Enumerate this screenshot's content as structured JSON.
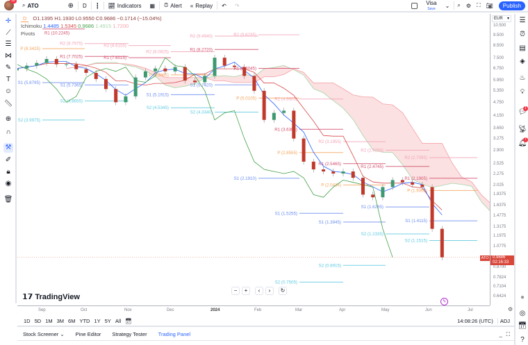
{
  "topbar": {
    "notifications": "18",
    "symbol": "ATO",
    "interval": "D",
    "indicators_label": "Indicators",
    "alert_label": "Alert",
    "replay_label": "Replay",
    "layout_name": "Visa",
    "layout_status": "Save",
    "publish_label": "Publish"
  },
  "legend": {
    "interval_badge": "D",
    "ohlc": "O1.1395 H1.1930 L0.9550 C0.9686 −0.1714 (−15.04%)",
    "ichimoku_label": "Ichimoku",
    "ichimoku_values": [
      {
        "v": "1.4485",
        "color": "#2962ff"
      },
      {
        "v": "1.5345",
        "color": "#d84a4a"
      },
      {
        "v": "0.9686",
        "color": "#43a047"
      },
      {
        "v": "1.4915",
        "color": "#a5d6a7"
      },
      {
        "v": "1.7200",
        "color": "#f5a0a8"
      }
    ],
    "pivots_label": "Pivots"
  },
  "price_axis": {
    "currency": "EUR",
    "ticks": [
      "10.500",
      "9.500",
      "8.500",
      "7.500",
      "6.750",
      "5.950",
      "5.350",
      "4.750",
      "4.150",
      "3.650",
      "3.275",
      "2.900",
      "2.525",
      "2.275",
      "2.025",
      "1.8375",
      "1.6375",
      "1.4775",
      "1.3175",
      "1.1975",
      "1.0775",
      "0.8700",
      "0.7824",
      "0.7104",
      "0.6424"
    ],
    "last_price": "0.9686",
    "countdown": "02:16:33",
    "symbol_tag": "ATO"
  },
  "time_axis": [
    "Sep",
    "Oct",
    "Nov",
    "Dec",
    "2024",
    "Feb",
    "Mar",
    "Apr",
    "May",
    "Jun",
    "Jul"
  ],
  "range_bar": {
    "ranges": [
      "1D",
      "5D",
      "1M",
      "3M",
      "6M",
      "YTD",
      "1Y",
      "5Y",
      "All"
    ],
    "clock": "14:08:26 (UTC)",
    "adj": "ADJ"
  },
  "bottom_tabs": [
    "Stock Screener",
    "Pine Editor",
    "Strategy Tester",
    "Trading Panel"
  ],
  "brand": "TradingView",
  "right_toolbar": {
    "chat_badge": "1",
    "alerts_badge": "7"
  },
  "colors": {
    "up": "#3d9970",
    "down": "#c0392b",
    "accent": "#2962ff",
    "R2": "#f3a2b6",
    "R1": "#d24d6c",
    "P": "#f5a35a",
    "S1": "#6a8df0",
    "S2": "#5cc9e0"
  },
  "chart_data": {
    "type": "candlestick",
    "scale": "log",
    "ylim": [
      0.6424,
      10.5
    ],
    "x_range": [
      "2023-08-14",
      "2024-07-08"
    ],
    "closes": [
      [
        "2023-08-14",
        6.8
      ],
      [
        "2023-08-21",
        7.0
      ],
      [
        "2023-08-28",
        7.2
      ],
      [
        "2023-09-04",
        7.5
      ],
      [
        "2023-09-11",
        7.1
      ],
      [
        "2023-09-18",
        7.1
      ],
      [
        "2023-09-25",
        6.75
      ],
      [
        "2023-10-02",
        6.5
      ],
      [
        "2023-10-09",
        6.1
      ],
      [
        "2023-10-16",
        5.5
      ],
      [
        "2023-10-23",
        4.8
      ],
      [
        "2023-10-30",
        5.1
      ],
      [
        "2023-11-06",
        6.2
      ],
      [
        "2023-11-13",
        6.6
      ],
      [
        "2023-11-20",
        6.8
      ],
      [
        "2023-11-27",
        6.6
      ],
      [
        "2023-12-04",
        6.9
      ],
      [
        "2023-12-11",
        6.0
      ],
      [
        "2023-12-18",
        5.9
      ],
      [
        "2023-12-25",
        6.3
      ],
      [
        "2024-01-01",
        7.6
      ],
      [
        "2024-01-08",
        7.0
      ],
      [
        "2024-01-15",
        6.9
      ],
      [
        "2024-01-22",
        6.3
      ],
      [
        "2024-01-29",
        5.4
      ],
      [
        "2024-02-05",
        4.0
      ],
      [
        "2024-02-12",
        4.3
      ],
      [
        "2024-02-19",
        4.4
      ],
      [
        "2024-02-26",
        3.3
      ],
      [
        "2024-03-04",
        2.6
      ],
      [
        "2024-03-11",
        2.4
      ],
      [
        "2024-03-18",
        2.35
      ],
      [
        "2024-03-25",
        2.3
      ],
      [
        "2024-04-01",
        2.35
      ],
      [
        "2024-04-08",
        2.2
      ],
      [
        "2024-04-15",
        1.85
      ],
      [
        "2024-04-22",
        1.8
      ],
      [
        "2024-04-29",
        2.0
      ],
      [
        "2024-05-06",
        2.15
      ],
      [
        "2024-05-13",
        2.1
      ],
      [
        "2024-05-20",
        2.05
      ],
      [
        "2024-05-27",
        2.0
      ],
      [
        "2024-06-03",
        1.3
      ],
      [
        "2024-06-10",
        0.9686
      ]
    ],
    "pivots": [
      {
        "start": "2023-09-01",
        "end": "2023-10-01",
        "levels": [
          [
            "R1",
            "10.2245"
          ],
          [
            "P",
            "8.3425"
          ],
          [
            "S1",
            "5.8795"
          ],
          [
            "S2",
            "3.9975"
          ]
        ]
      },
      {
        "start": "2023-10-01",
        "end": "2023-11-01",
        "levels": [
          [
            "R2",
            "8.7975"
          ],
          [
            "R1",
            "7.7025"
          ],
          [
            "S1",
            "5.7365"
          ],
          [
            "S2",
            "4.8655"
          ]
        ]
      },
      {
        "start": "2023-11-01",
        "end": "2023-12-01",
        "levels": [
          [
            "R2",
            "8.6155"
          ],
          [
            "R1",
            "7.6015"
          ]
        ]
      },
      {
        "start": "2023-12-01",
        "end": "2024-01-01",
        "levels": [
          [
            "R2",
            "8.0825"
          ],
          [
            "P",
            "6.3665"
          ],
          [
            "S1",
            "5.1915"
          ],
          [
            "S2",
            "4.5345"
          ]
        ]
      },
      {
        "start": "2024-01-01",
        "end": "2024-02-01",
        "levels": [
          [
            "R2",
            "9.4940"
          ],
          [
            "R1",
            "8.2720"
          ],
          [
            "S1",
            "5.7420"
          ],
          [
            "S2",
            "4.3340"
          ]
        ]
      },
      {
        "start": "2024-02-01",
        "end": "2024-03-01",
        "levels": [
          [
            "R2",
            "9.6235"
          ],
          [
            "R1",
            "6.8045"
          ],
          [
            "P",
            "5.0105"
          ],
          [
            "S1",
            "2.1910"
          ]
        ]
      },
      {
        "start": "2024-03-01",
        "end": "2024-04-01",
        "levels": [
          [
            "R2",
            "4.9605"
          ],
          [
            "R1",
            "3.6305"
          ],
          [
            "P",
            "2.8555"
          ],
          [
            "S1",
            "1.5255"
          ],
          [
            "S2",
            "0.7505"
          ]
        ]
      },
      {
        "start": "2024-04-01",
        "end": "2024-05-01",
        "levels": [
          [
            "R2",
            "3.1955"
          ],
          [
            "R1",
            "2.5465"
          ],
          [
            "P",
            "2.0434"
          ],
          [
            "S1",
            "1.3945"
          ],
          [
            "S2",
            "0.8915"
          ]
        ]
      },
      {
        "start": "2024-05-01",
        "end": "2024-06-01",
        "levels": [
          [
            "R2",
            "2.9255"
          ],
          [
            "R1",
            "2.4745"
          ],
          [
            "S1",
            "1.6285"
          ],
          [
            "S2",
            "1.2335"
          ]
        ]
      },
      {
        "start": "2024-06-01",
        "end": "2024-07-05",
        "levels": [
          [
            "R2",
            "2.7095"
          ],
          [
            "R1",
            "2.1905"
          ],
          [
            "P",
            "1.9305"
          ],
          [
            "S1",
            "1.4115"
          ],
          [
            "S2",
            "1.1515"
          ]
        ]
      }
    ]
  }
}
